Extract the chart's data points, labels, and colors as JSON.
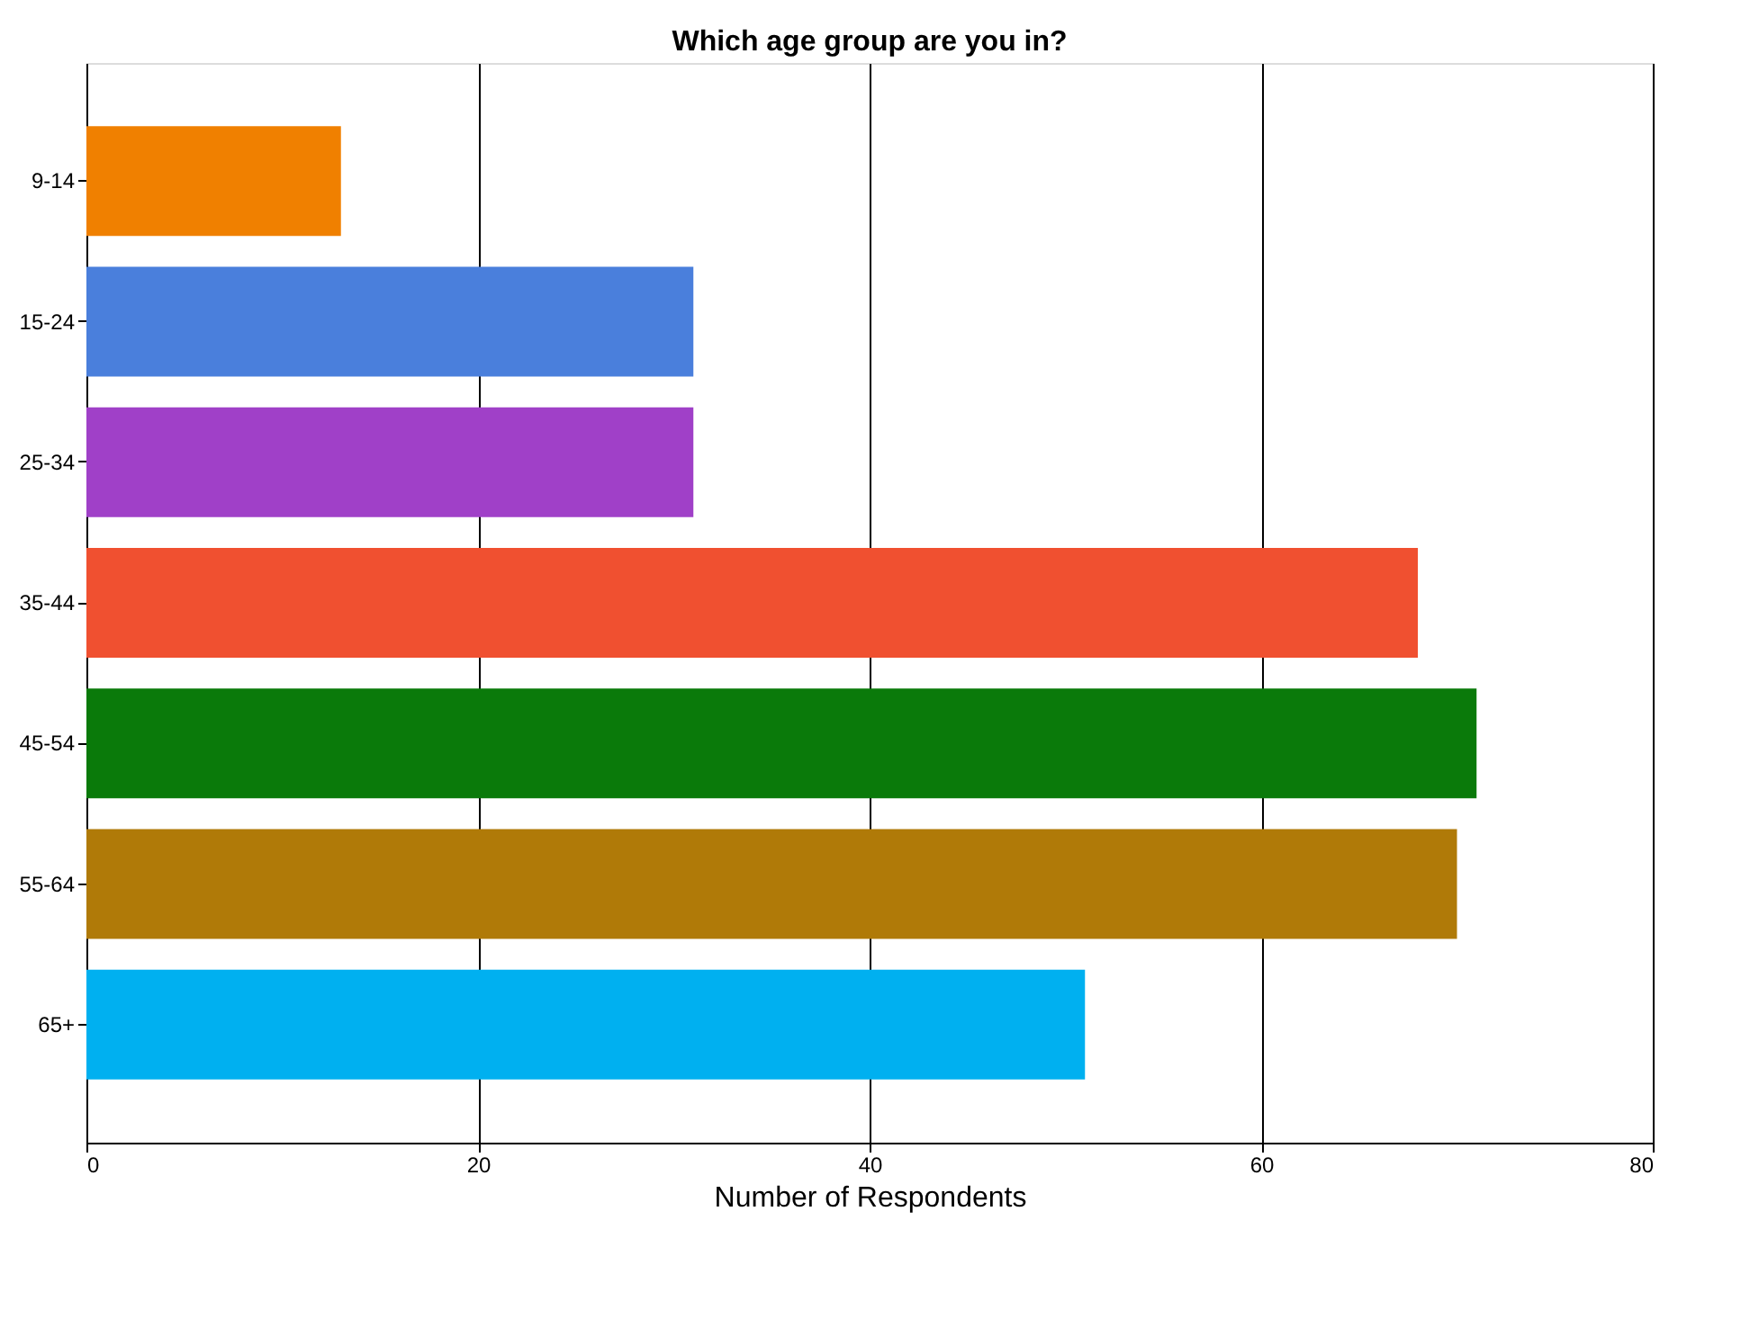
{
  "chart_data": {
    "type": "bar",
    "orientation": "horizontal",
    "title": "Which age group are you in?",
    "xlabel": "Number of Respondents",
    "categories": [
      "9-14",
      "15-24",
      "25-34",
      "35-44",
      "45-54",
      "55-64",
      "65+"
    ],
    "values": [
      13,
      31,
      31,
      68,
      71,
      70,
      51
    ],
    "colors": [
      "#f08000",
      "#4a7fdc",
      "#a040c8",
      "#f05030",
      "#0a7a0a",
      "#b07a08",
      "#00b0f0"
    ],
    "xlim": [
      0,
      80
    ],
    "xticks": [
      0,
      20,
      40,
      60,
      80
    ],
    "grid": "x"
  }
}
